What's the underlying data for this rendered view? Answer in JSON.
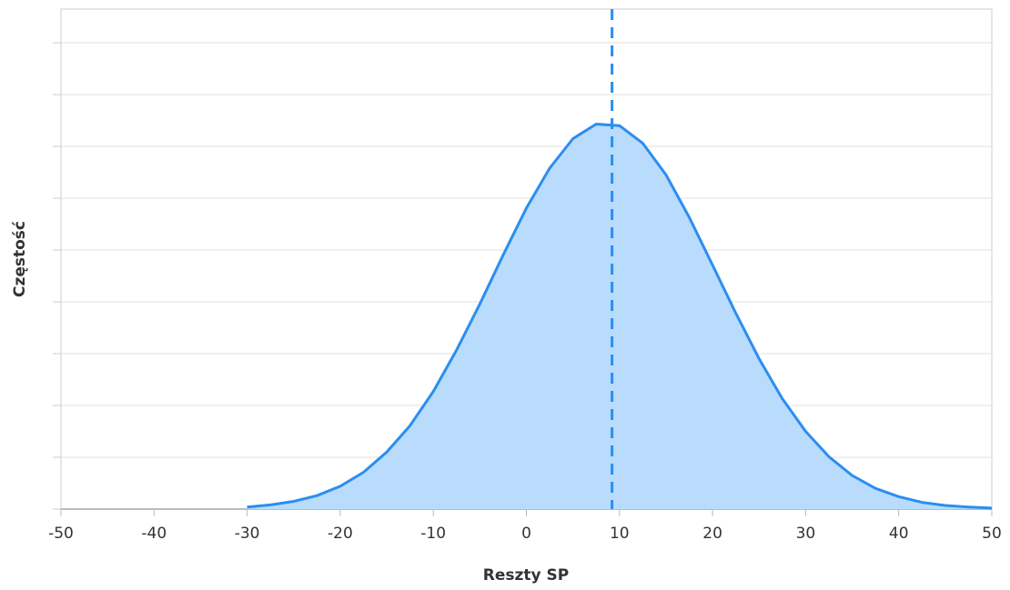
{
  "chart_data": {
    "type": "area",
    "xlabel": "Reszty SP",
    "ylabel": "Częstość",
    "x": [
      -30,
      -27.5,
      -25,
      -22.5,
      -20,
      -17.5,
      -15,
      -12.5,
      -10,
      -7.5,
      -5,
      -2.5,
      0,
      2.5,
      5,
      7.5,
      10,
      12.5,
      15,
      17.5,
      20,
      22.5,
      25,
      27.5,
      30,
      32.5,
      35,
      37.5,
      40,
      42.5,
      45,
      47.5,
      50
    ],
    "series": [
      {
        "color": "#2b8ef0",
        "fill": "#b9dcfc",
        "values": [
          0.04,
          0.08,
          0.15,
          0.26,
          0.44,
          0.71,
          1.1,
          1.61,
          2.27,
          3.07,
          3.96,
          4.9,
          5.81,
          6.58,
          7.15,
          7.43,
          7.4,
          7.06,
          6.45,
          5.63,
          4.71,
          3.78,
          2.9,
          2.13,
          1.5,
          1.01,
          0.65,
          0.4,
          0.24,
          0.13,
          0.07,
          0.04,
          0.02
        ]
      }
    ],
    "reference_line": {
      "x": 9.2,
      "color": "#2b8ef0",
      "dashed": true
    },
    "xlim": [
      -50,
      50
    ],
    "xticks": [
      -50,
      -40,
      -30,
      -20,
      -10,
      0,
      10,
      20,
      30,
      40,
      50
    ],
    "ylim": [
      0,
      9.65
    ],
    "yticks": [
      0,
      1,
      2,
      3,
      4,
      5,
      6,
      7,
      8,
      9
    ],
    "grid": true
  }
}
